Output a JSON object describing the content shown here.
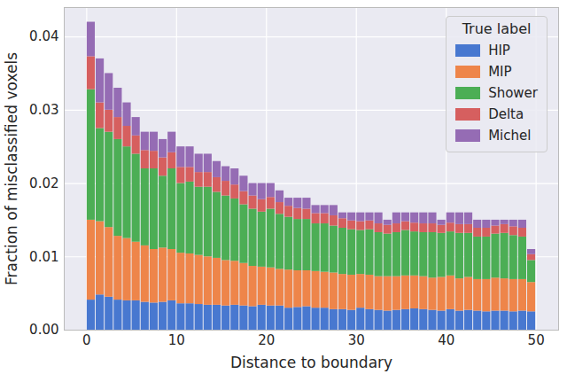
{
  "chart_data": {
    "type": "histogram",
    "x_label": "Distance to boundary",
    "y_label": "Fraction of misclassified voxels",
    "stacked": true,
    "grid": true,
    "legend": "upper right",
    "legend_title": "True label",
    "bins": [
      0,
      1,
      2,
      3,
      4,
      5,
      6,
      7,
      8,
      9,
      10,
      11,
      12,
      13,
      14,
      15,
      16,
      17,
      18,
      19,
      20,
      21,
      22,
      23,
      24,
      25,
      26,
      27,
      28,
      29,
      30,
      31,
      32,
      33,
      34,
      35,
      36,
      37,
      38,
      39,
      40,
      41,
      42,
      43,
      44,
      45,
      46,
      47,
      48,
      49,
      50
    ],
    "xlim": [
      -2.5,
      52.5
    ],
    "xticks": [
      0,
      10,
      20,
      30,
      40,
      50
    ],
    "ylim": [
      0,
      0.044
    ],
    "yticks": [
      {
        "value": 0,
        "label": "0.00"
      },
      {
        "value": 0.01,
        "label": "0.01"
      },
      {
        "value": 0.02,
        "label": "0.02"
      },
      {
        "value": 0.03,
        "label": "0.03"
      },
      {
        "value": 0.04,
        "label": "0.04"
      }
    ],
    "series": [
      {
        "name": "HIP",
        "color": "#4878d0",
        "values": [
          0.0041,
          0.0048,
          0.0045,
          0.0041,
          0.004,
          0.004,
          0.0038,
          0.0037,
          0.0038,
          0.004,
          0.0036,
          0.0036,
          0.0035,
          0.0034,
          0.0034,
          0.0033,
          0.0034,
          0.0033,
          0.0032,
          0.0034,
          0.0033,
          0.0033,
          0.003,
          0.0031,
          0.0032,
          0.003,
          0.003,
          0.0028,
          0.0028,
          0.0027,
          0.003,
          0.0028,
          0.0027,
          0.0026,
          0.0027,
          0.0028,
          0.0029,
          0.0028,
          0.0027,
          0.0026,
          0.0028,
          0.0026,
          0.0027,
          0.0026,
          0.0025,
          0.0026,
          0.0026,
          0.0025,
          0.0026,
          0.0025
        ]
      },
      {
        "name": "MIP",
        "color": "#ee854a",
        "values": [
          0.0109,
          0.01,
          0.0095,
          0.0087,
          0.0085,
          0.008,
          0.0077,
          0.0073,
          0.0074,
          0.007,
          0.0069,
          0.0068,
          0.0067,
          0.0066,
          0.0064,
          0.0062,
          0.006,
          0.0058,
          0.0055,
          0.0052,
          0.0052,
          0.005,
          0.0052,
          0.005,
          0.0049,
          0.005,
          0.0049,
          0.005,
          0.0048,
          0.0048,
          0.0046,
          0.0047,
          0.0046,
          0.0047,
          0.0046,
          0.0046,
          0.0045,
          0.0045,
          0.0044,
          0.0046,
          0.0046,
          0.0044,
          0.0045,
          0.0043,
          0.0044,
          0.0045,
          0.0044,
          0.0044,
          0.0043,
          0.004
        ]
      },
      {
        "name": "Shower",
        "color": "#4cae55",
        "values": [
          0.0178,
          0.0127,
          0.013,
          0.0132,
          0.0125,
          0.012,
          0.0105,
          0.011,
          0.0098,
          0.011,
          0.0095,
          0.0098,
          0.0093,
          0.0095,
          0.009,
          0.0088,
          0.0085,
          0.008,
          0.0078,
          0.0075,
          0.008,
          0.0075,
          0.0072,
          0.007,
          0.007,
          0.0065,
          0.0066,
          0.0064,
          0.0063,
          0.0062,
          0.006,
          0.0062,
          0.006,
          0.0058,
          0.006,
          0.0062,
          0.006,
          0.006,
          0.0062,
          0.006,
          0.006,
          0.0062,
          0.006,
          0.0058,
          0.0058,
          0.006,
          0.0062,
          0.006,
          0.0058,
          0.003
        ]
      },
      {
        "name": "Delta",
        "color": "#d65f5f",
        "values": [
          0.0045,
          0.0035,
          0.003,
          0.003,
          0.0028,
          0.0025,
          0.0025,
          0.0024,
          0.0025,
          0.0022,
          0.0022,
          0.002,
          0.002,
          0.002,
          0.002,
          0.002,
          0.0019,
          0.0018,
          0.0018,
          0.0017,
          0.0016,
          0.0016,
          0.0015,
          0.0015,
          0.0014,
          0.0014,
          0.0014,
          0.0014,
          0.0013,
          0.0012,
          0.0012,
          0.0012,
          0.0012,
          0.0012,
          0.0012,
          0.0012,
          0.0012,
          0.0012,
          0.0012,
          0.0011,
          0.0012,
          0.0012,
          0.0012,
          0.0012,
          0.0012,
          0.0011,
          0.0012,
          0.0012,
          0.0012,
          0.0008
        ]
      },
      {
        "name": "Michel",
        "color": "#956cb4",
        "values": [
          0.0047,
          0.006,
          0.005,
          0.004,
          0.0032,
          0.0025,
          0.0025,
          0.0026,
          0.0025,
          0.0028,
          0.0028,
          0.0028,
          0.0025,
          0.0025,
          0.0022,
          0.002,
          0.0022,
          0.0021,
          0.0017,
          0.0022,
          0.0019,
          0.0016,
          0.0011,
          0.0014,
          0.0015,
          0.0011,
          0.0011,
          0.0014,
          0.0008,
          0.0011,
          0.0012,
          0.0011,
          0.0015,
          0.0007,
          0.0015,
          0.0012,
          0.0014,
          0.0015,
          0.0015,
          0.0007,
          0.0014,
          0.0016,
          0.0016,
          0.0011,
          0.0011,
          0.0008,
          0.0006,
          0.0009,
          0.0011,
          0.0007
        ]
      }
    ]
  }
}
